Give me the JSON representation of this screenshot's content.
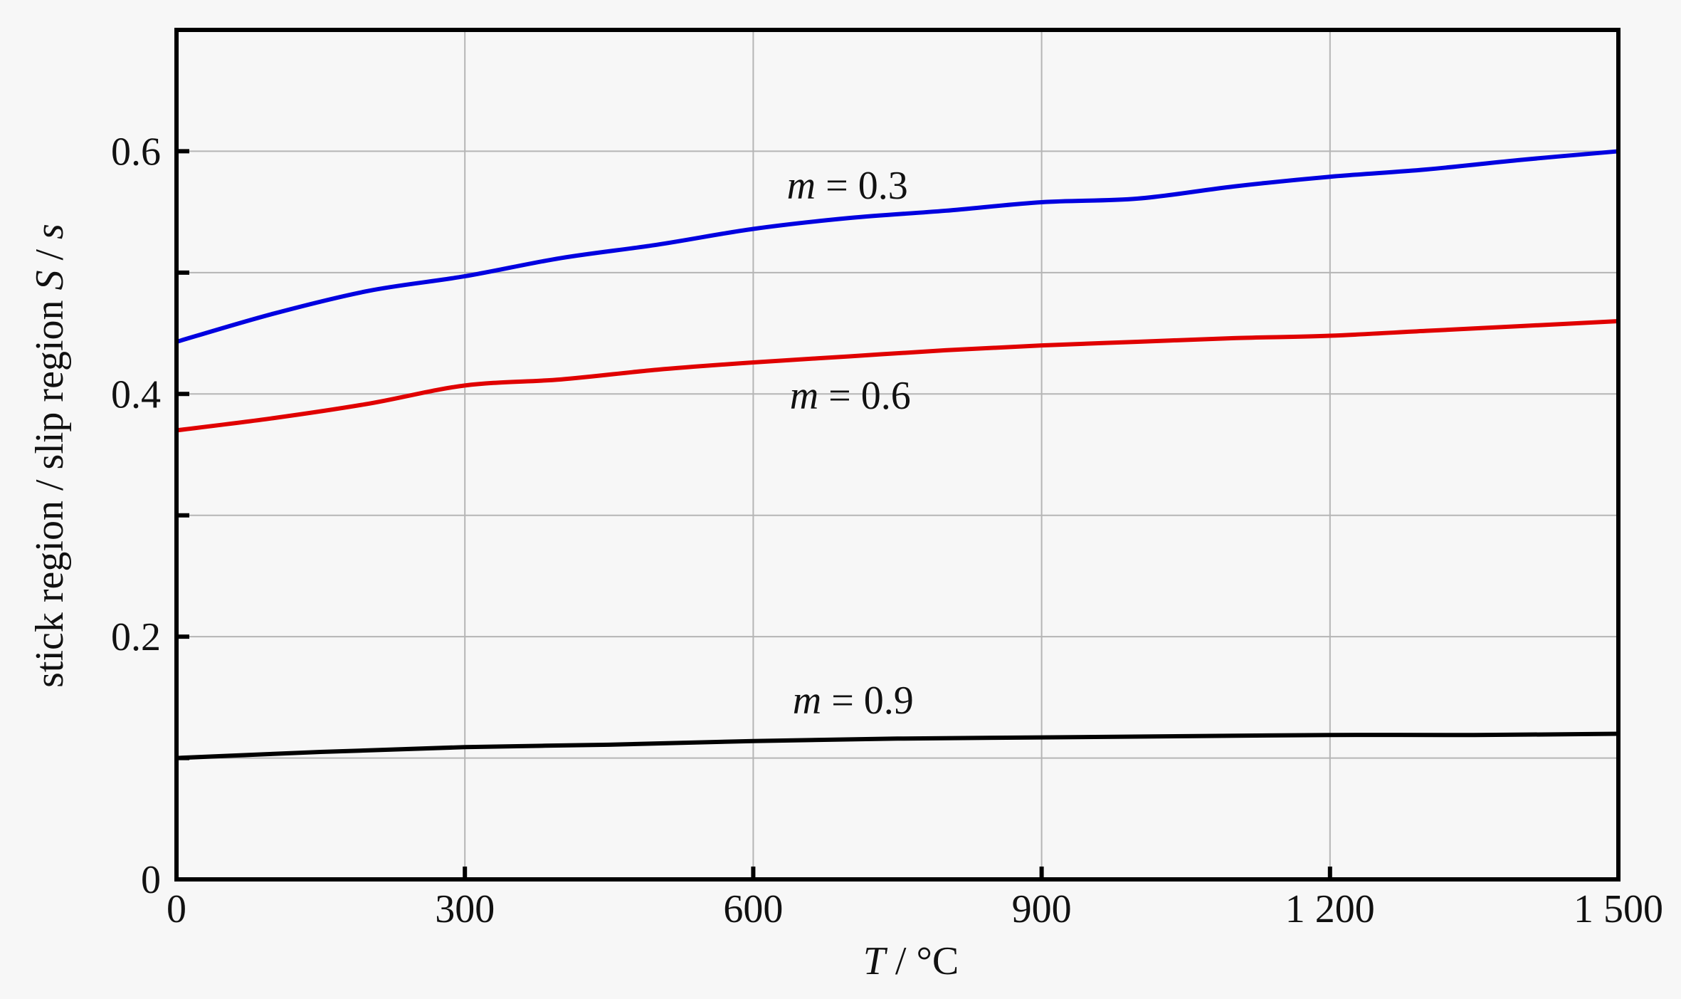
{
  "chart_data": {
    "type": "line",
    "title": "",
    "xlabel_var": "T",
    "xlabel_unit": " / °C",
    "ylabel_text": "stick region / slip region ",
    "ylabel_var": "S",
    "ylabel_sep": " / ",
    "ylabel_var2": "s",
    "xlim": [
      0,
      1500
    ],
    "ylim": [
      0,
      0.7
    ],
    "xticks": [
      0,
      300,
      600,
      900,
      1200,
      1500
    ],
    "xtick_labels": [
      "0",
      "300",
      "600",
      "900",
      "1 200",
      "1 500"
    ],
    "yticks": [
      0,
      0.1,
      0.2,
      0.3,
      0.4,
      0.5,
      0.6
    ],
    "ytick_labels": [
      "0",
      "",
      "0.2",
      "",
      "0.4",
      "",
      "0.6"
    ],
    "grid": true,
    "series": [
      {
        "name": "m = 0.3",
        "var": "m",
        "label_rest": " = 0.3",
        "color": "#0000e0",
        "label_at": [
          635,
          0.572
        ],
        "x": [
          0,
          100,
          200,
          300,
          400,
          500,
          600,
          700,
          800,
          900,
          1000,
          1100,
          1200,
          1300,
          1400,
          1500
        ],
        "y": [
          0.443,
          0.466,
          0.485,
          0.497,
          0.512,
          0.523,
          0.536,
          0.545,
          0.551,
          0.558,
          0.561,
          0.571,
          0.579,
          0.585,
          0.593,
          0.6
        ]
      },
      {
        "name": "m = 0.6",
        "var": "m",
        "label_rest": " = 0.6",
        "color": "#e00000",
        "label_at": [
          638,
          0.399
        ],
        "x": [
          0,
          100,
          200,
          300,
          400,
          500,
          600,
          700,
          800,
          900,
          1000,
          1100,
          1200,
          1300,
          1400,
          1500
        ],
        "y": [
          0.37,
          0.38,
          0.392,
          0.407,
          0.412,
          0.42,
          0.426,
          0.431,
          0.436,
          0.44,
          0.443,
          0.446,
          0.448,
          0.452,
          0.456,
          0.46
        ]
      },
      {
        "name": "m = 0.9",
        "var": "m",
        "label_rest": " = 0.9",
        "color": "#000000",
        "label_at": [
          641,
          0.148
        ],
        "x": [
          0,
          150,
          300,
          450,
          600,
          750,
          900,
          1050,
          1200,
          1350,
          1500
        ],
        "y": [
          0.1,
          0.105,
          0.109,
          0.111,
          0.114,
          0.116,
          0.117,
          0.118,
          0.119,
          0.119,
          0.12
        ]
      }
    ]
  }
}
